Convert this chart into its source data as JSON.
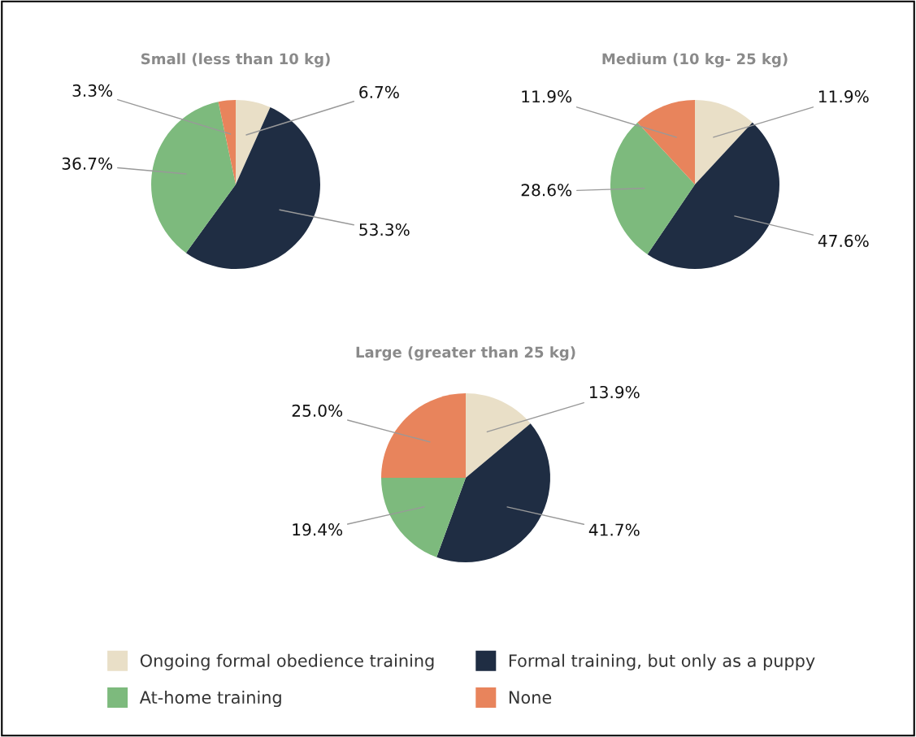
{
  "chart_data": [
    {
      "type": "pie",
      "title": "Small (less than 10 kg)",
      "categories": [
        "Ongoing formal obedience training",
        "Formal training, but only as a puppy",
        "At-home training",
        "None"
      ],
      "values": [
        6.7,
        53.3,
        36.7,
        3.3
      ],
      "value_labels": [
        "6.7%",
        "53.3%",
        "36.7%",
        "3.3%"
      ],
      "colors": [
        "#e9dfc7",
        "#1f2d43",
        "#7dba7d",
        "#e8845c"
      ],
      "legend": "bottom"
    },
    {
      "type": "pie",
      "title": "Medium (10 kg- 25 kg)",
      "categories": [
        null,
        null,
        null,
        null
      ],
      "values": [
        11.9,
        47.6,
        28.6,
        11.9
      ],
      "value_labels": [
        "11.9%",
        "47.6%",
        "28.6%",
        "11.9%"
      ],
      "colors": [
        "#e9dfc7",
        "#1f2d43",
        "#7dba7d",
        "#e8845c"
      ]
    },
    {
      "type": "pie",
      "title": "Large (greater than 25 kg)",
      "categories": [
        null,
        null,
        null,
        null
      ],
      "values": [
        13.9,
        41.7,
        19.4,
        25.0
      ],
      "value_labels": [
        "13.9%",
        "41.7%",
        "19.4%",
        "25.0%"
      ],
      "colors": [
        "#e9dfc7",
        "#1f2d43",
        "#7dba7d",
        "#e8845c"
      ]
    }
  ]
}
